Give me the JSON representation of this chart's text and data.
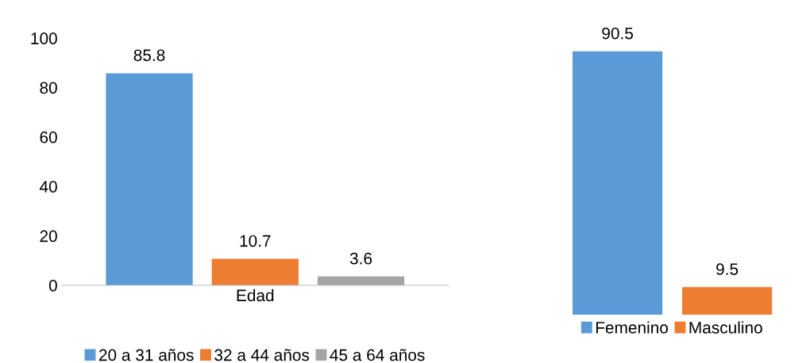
{
  "chart_data": [
    {
      "type": "bar",
      "categories": [
        "Edad"
      ],
      "series": [
        {
          "name": "20 a 31 años",
          "color": "#5b9bd5",
          "values": [
            85.8
          ]
        },
        {
          "name": "32 a 44 años",
          "color": "#ed7d31",
          "values": [
            10.7
          ]
        },
        {
          "name": "45 a 64 años",
          "color": "#a5a5a5",
          "values": [
            3.6
          ]
        }
      ],
      "ylim": [
        0,
        100
      ],
      "yticks": [
        0,
        20,
        40,
        60,
        80,
        100
      ],
      "data_labels": true,
      "legend": "bottom",
      "grid": false
    },
    {
      "type": "bar",
      "categories": [
        null
      ],
      "series": [
        {
          "name": "Femenino",
          "color": "#5b9bd5",
          "values": [
            90.5
          ]
        },
        {
          "name": "Masculino",
          "color": "#ed7d31",
          "values": [
            9.5
          ]
        }
      ],
      "data_labels": true,
      "legend": "bottom",
      "grid": false,
      "tick_labels": false
    }
  ]
}
